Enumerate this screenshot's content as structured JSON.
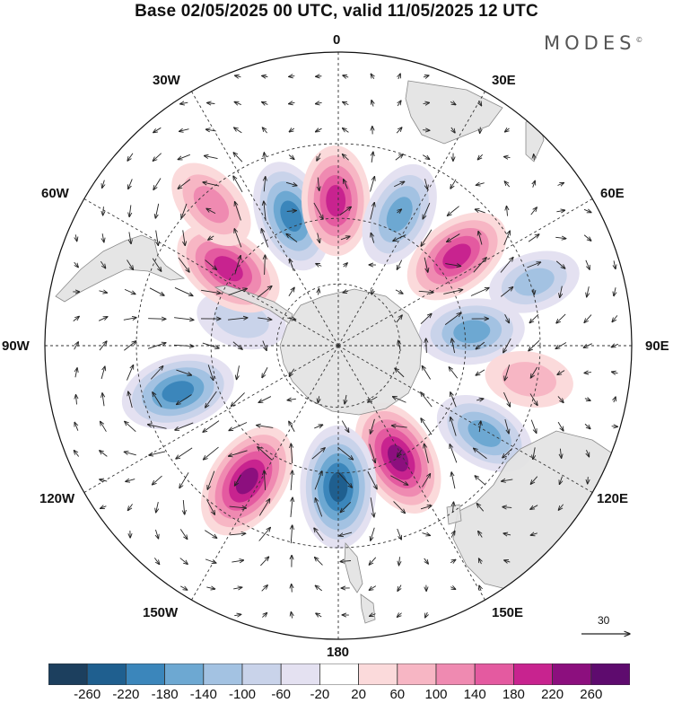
{
  "title": "Base 02/05/2025 00 UTC, valid 11/05/2025 12 UTC",
  "brand": "MODES",
  "brand_mark": "©",
  "longitude_labels": {
    "lon_0": "0",
    "lon_30e": "30E",
    "lon_60e": "60E",
    "lon_90e": "90E",
    "lon_120e": "120E",
    "lon_150e": "150E",
    "lon_180": "180",
    "lon_150w": "150W",
    "lon_120w": "120W",
    "lon_90w": "90W",
    "lon_60w": "60W",
    "lon_30w": "30W"
  },
  "reference_vector": {
    "label": "30"
  },
  "colorbar": {
    "tick_labels": [
      "-260",
      "-220",
      "-180",
      "-140",
      "-100",
      "-60",
      "-20",
      "20",
      "60",
      "100",
      "140",
      "180",
      "220",
      "260"
    ],
    "colors": [
      "#1c3f5e",
      "#1f5f8f",
      "#3b86bb",
      "#6da8d2",
      "#a3c2e2",
      "#c9d3ea",
      "#e4e1f1",
      "#ffffff",
      "#fbdadb",
      "#f7b6c4",
      "#ef8ab1",
      "#e45aa0",
      "#c8238f",
      "#8c0f7e",
      "#5e0b6e"
    ]
  },
  "map_colors": {
    "ocean": "#ffffff",
    "land": "#e3e3e3",
    "coast": "#8a8a8a",
    "grid": "#333333"
  },
  "anomaly_centers": [
    {
      "name": "atlantic-30w-low",
      "lon": -20,
      "lat": -47,
      "value": -190
    },
    {
      "name": "greenwich-high",
      "lon": -1,
      "lat": -45,
      "value": 180
    },
    {
      "name": "south-africa-low",
      "lon": 25,
      "lat": -45,
      "value": -160
    },
    {
      "name": "indian-60e-high",
      "lon": 53,
      "lat": -44,
      "value": 190
    },
    {
      "name": "indian-75e-low",
      "lon": 72,
      "lat": -29,
      "value": -100
    },
    {
      "name": "indian-90e-low",
      "lon": 84,
      "lat": -48,
      "value": -160
    },
    {
      "name": "indian-100e-high",
      "lon": 100,
      "lat": -32,
      "value": 80
    },
    {
      "name": "australia-low",
      "lon": 121,
      "lat": -38,
      "value": -150
    },
    {
      "name": "tasman-high",
      "lon": 152,
      "lat": -50,
      "value": 220
    },
    {
      "name": "ross-sea-low",
      "lon": 180,
      "lat": -46,
      "value": -240
    },
    {
      "name": "pacific-140w-high",
      "lon": -146,
      "lat": -40,
      "value": 230
    },
    {
      "name": "pacific-110w-low",
      "lon": -106,
      "lat": -39,
      "value": -200
    },
    {
      "name": "drake-low",
      "lon": -75,
      "lat": -58,
      "value": -90
    },
    {
      "name": "argentina-high",
      "lon": -55,
      "lat": -48,
      "value": 200
    },
    {
      "name": "south-atlantic-high",
      "lon": -42,
      "lat": -33,
      "value": 120
    }
  ]
}
